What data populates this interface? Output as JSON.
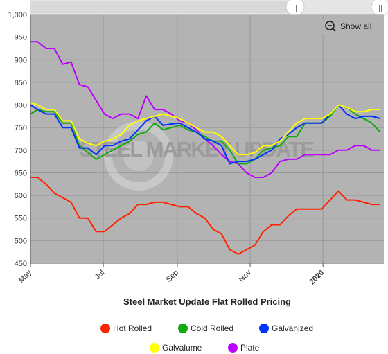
{
  "chart_data": {
    "type": "line",
    "title": "Steel Market Update Flat Rolled Pricing",
    "watermark": "STEEL MARKET UPDATE",
    "xlabel": "",
    "ylabel": "",
    "ylim": [
      450,
      1000
    ],
    "yticks": [
      450,
      500,
      550,
      600,
      650,
      700,
      750,
      800,
      850,
      900,
      950,
      1000
    ],
    "ytick_labels": [
      "450",
      "500",
      "550",
      "600",
      "650",
      "700",
      "750",
      "800",
      "850",
      "900",
      "950",
      "1,000"
    ],
    "xlim": [
      "2019-05-01",
      "2020-02-21"
    ],
    "xticks": [
      {
        "date": "2019-05-01",
        "label": "May",
        "bold": false
      },
      {
        "date": "2019-07-01",
        "label": "Jul",
        "bold": false
      },
      {
        "date": "2019-09-01",
        "label": "Sep",
        "bold": false
      },
      {
        "date": "2019-11-01",
        "label": "Nov",
        "bold": false
      },
      {
        "date": "2020-01-01",
        "label": "2020",
        "bold": true
      }
    ],
    "grid": true,
    "legend_position": "bottom",
    "x": [
      "2019-05-01",
      "2019-05-07",
      "2019-05-14",
      "2019-05-21",
      "2019-05-28",
      "2019-06-04",
      "2019-06-11",
      "2019-06-18",
      "2019-06-25",
      "2019-07-02",
      "2019-07-09",
      "2019-07-16",
      "2019-07-23",
      "2019-07-30",
      "2019-08-06",
      "2019-08-13",
      "2019-08-20",
      "2019-08-27",
      "2019-09-03",
      "2019-09-10",
      "2019-09-17",
      "2019-09-24",
      "2019-10-01",
      "2019-10-08",
      "2019-10-15",
      "2019-10-22",
      "2019-10-29",
      "2019-11-05",
      "2019-11-12",
      "2019-11-19",
      "2019-11-26",
      "2019-12-03",
      "2019-12-10",
      "2019-12-17",
      "2019-12-24",
      "2019-12-31",
      "2020-01-07",
      "2020-01-14",
      "2020-01-21",
      "2020-01-28",
      "2020-02-04",
      "2020-02-11",
      "2020-02-18"
    ],
    "series": [
      {
        "name": "Hot Rolled",
        "color": "#ff2200",
        "values": [
          640,
          640,
          625,
          605,
          595,
          585,
          550,
          550,
          520,
          520,
          535,
          550,
          560,
          580,
          580,
          585,
          585,
          580,
          575,
          575,
          560,
          550,
          525,
          515,
          480,
          470,
          480,
          490,
          520,
          535,
          535,
          555,
          570,
          570,
          570,
          570,
          590,
          610,
          590,
          590,
          585,
          580,
          580
        ]
      },
      {
        "name": "Cold Rolled",
        "color": "#11aa11",
        "values": [
          780,
          790,
          785,
          785,
          760,
          760,
          710,
          695,
          680,
          690,
          700,
          710,
          720,
          735,
          740,
          760,
          745,
          750,
          755,
          745,
          740,
          730,
          720,
          720,
          700,
          670,
          670,
          680,
          700,
          705,
          710,
          730,
          730,
          760,
          760,
          760,
          775,
          800,
          795,
          780,
          770,
          760,
          740
        ]
      },
      {
        "name": "Galvanized",
        "color": "#0033ff",
        "values": [
          800,
          790,
          780,
          780,
          750,
          750,
          705,
          705,
          690,
          710,
          710,
          720,
          725,
          745,
          765,
          775,
          755,
          758,
          760,
          750,
          740,
          725,
          720,
          710,
          670,
          675,
          675,
          680,
          690,
          700,
          725,
          735,
          750,
          760,
          760,
          760,
          780,
          800,
          780,
          770,
          775,
          775,
          770
        ]
      },
      {
        "name": "Galvalume",
        "color": "#ffff00",
        "values": [
          805,
          800,
          790,
          790,
          765,
          765,
          725,
          715,
          710,
          720,
          725,
          735,
          755,
          765,
          770,
          775,
          780,
          775,
          770,
          760,
          750,
          740,
          740,
          730,
          710,
          690,
          690,
          695,
          710,
          710,
          720,
          740,
          760,
          770,
          770,
          770,
          780,
          800,
          795,
          785,
          785,
          790,
          790
        ]
      },
      {
        "name": "Plate",
        "color": "#bb00ff",
        "values": [
          940,
          940,
          925,
          925,
          890,
          895,
          845,
          840,
          810,
          780,
          770,
          780,
          780,
          770,
          820,
          790,
          790,
          780,
          765,
          760,
          745,
          725,
          710,
          690,
          675,
          670,
          650,
          640,
          640,
          650,
          675,
          680,
          680,
          690,
          690,
          690,
          690,
          700,
          700,
          710,
          710,
          700,
          700
        ]
      }
    ]
  },
  "ui": {
    "show_all_label": "Show all"
  }
}
